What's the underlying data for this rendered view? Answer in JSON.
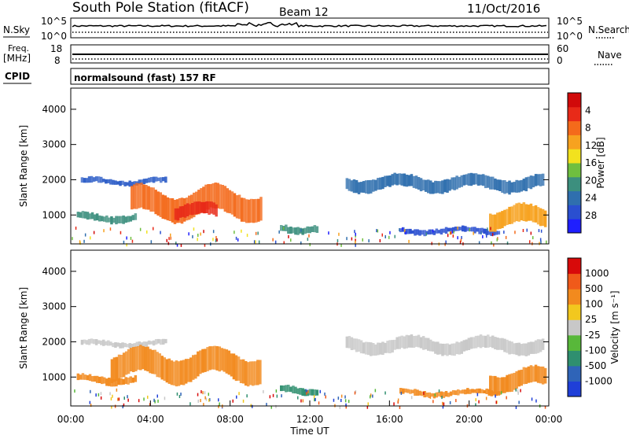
{
  "header": {
    "station": "South Pole Station (fitACF)",
    "beam": "Beam 12",
    "date": "11/Oct/2016"
  },
  "top_panels": {
    "nsky": {
      "label": "N.Sky",
      "ticks": [
        "10^5",
        "10^0"
      ]
    },
    "nsearch": {
      "label": "N.Search",
      "ticks": [
        "10^5",
        "10^0"
      ]
    },
    "freq": {
      "label_line1": "Freq.",
      "label_line2": "[MHz]",
      "ticks": [
        "18",
        "8"
      ]
    },
    "nave": {
      "label": "Nave",
      "ticks": [
        "60",
        "0"
      ]
    },
    "cpid": {
      "label": "CPID",
      "text": "normalsound (fast)  157 RF"
    }
  },
  "chart_data": [
    {
      "type": "heatmap",
      "name": "power",
      "xlabel": "Time UT",
      "ylabel": "Slant Range [km]",
      "xlim": [
        0,
        24
      ],
      "ylim": [
        180,
        4600
      ],
      "x_ticks": [
        "00:00",
        "04:00",
        "08:00",
        "12:00",
        "16:00",
        "20:00",
        "00:00"
      ],
      "y_ticks": [
        1000,
        2000,
        3000,
        4000
      ],
      "colorbar": {
        "label": "Power [dB]",
        "ticks": [
          "4",
          "8",
          "12",
          "16",
          "20",
          "24",
          "28"
        ],
        "colors": [
          "#1f1fff",
          "#2a4fd0",
          "#2f6fae",
          "#3c8f7e",
          "#6fbf3f",
          "#f2e21e",
          "#f7a21f",
          "#f46a1b",
          "#e82a18",
          "#d10a0a"
        ]
      },
      "bands": [
        {
          "t0": 0.5,
          "t1": 4.8,
          "range0": 1850,
          "range1": 2050,
          "color": "#2f5fc8"
        },
        {
          "t0": 0.3,
          "t1": 3.2,
          "range0": 800,
          "range1": 1050,
          "color": "#3c8f7e"
        },
        {
          "t0": 3.0,
          "t1": 9.5,
          "range0": 950,
          "range1": 1700,
          "color": "#f46a1b"
        },
        {
          "t0": 5.2,
          "t1": 7.3,
          "range0": 900,
          "range1": 1300,
          "color": "#e82a18"
        },
        {
          "t0": 10.5,
          "t1": 12.3,
          "range0": 500,
          "range1": 750,
          "color": "#3c8f7e"
        },
        {
          "t0": 13.8,
          "t1": 23.7,
          "range0": 1700,
          "range1": 2100,
          "color": "#2f6fae"
        },
        {
          "t0": 16.5,
          "t1": 21.5,
          "range0": 450,
          "range1": 650,
          "color": "#2a4fd0"
        },
        {
          "t0": 21.0,
          "t1": 23.8,
          "range0": 650,
          "range1": 1200,
          "color": "#f7a21f"
        }
      ]
    },
    {
      "type": "heatmap",
      "name": "velocity",
      "xlabel": "Time UT",
      "ylabel": "Slant Range [km]",
      "xlim": [
        0,
        24
      ],
      "ylim": [
        180,
        4600
      ],
      "x_ticks": [
        "00:00",
        "04:00",
        "08:00",
        "12:00",
        "16:00",
        "20:00",
        "00:00"
      ],
      "y_ticks": [
        1000,
        2000,
        3000,
        4000
      ],
      "colorbar": {
        "label": "Velocity [m s⁻¹]",
        "ticks": [
          "1000",
          "500",
          "100",
          "25",
          "-25",
          "-100",
          "-500",
          "-1000"
        ],
        "colors": [
          "#1f3fd8",
          "#2f64b8",
          "#2f8f6f",
          "#58b83a",
          "#c8c8c8",
          "#f2c81e",
          "#f28a1e",
          "#f05a1a",
          "#d80a0a"
        ]
      },
      "bands": [
        {
          "t0": 0.5,
          "t1": 4.8,
          "range0": 1850,
          "range1": 2050,
          "color": "#c8c8c8"
        },
        {
          "t0": 0.3,
          "t1": 3.2,
          "range0": 800,
          "range1": 1050,
          "color": "#f28a1e"
        },
        {
          "t0": 2.0,
          "t1": 9.5,
          "range0": 950,
          "range1": 1700,
          "color": "#f28a1e"
        },
        {
          "t0": 10.5,
          "t1": 12.3,
          "range0": 500,
          "range1": 750,
          "color": "#2f8f6f"
        },
        {
          "t0": 13.8,
          "t1": 23.7,
          "range0": 1700,
          "range1": 2100,
          "color": "#c8c8c8"
        },
        {
          "t0": 16.5,
          "t1": 21.5,
          "range0": 450,
          "range1": 650,
          "color": "#f28a1e"
        },
        {
          "t0": 21.0,
          "t1": 23.8,
          "range0": 650,
          "range1": 1200,
          "color": "#f28a1e"
        }
      ]
    }
  ]
}
